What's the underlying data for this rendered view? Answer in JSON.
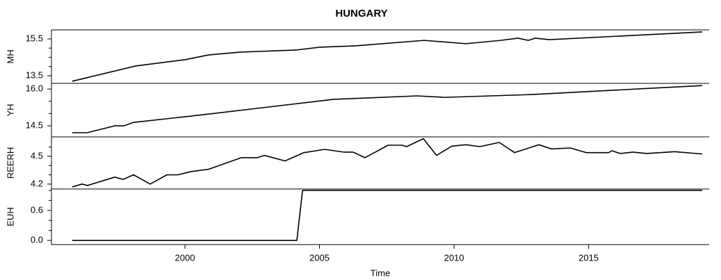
{
  "title": "HUNGARY",
  "chart_data": [
    {
      "type": "line",
      "ylabel": "MH",
      "color": "#000000",
      "xlim": [
        1995.04,
        2019.48
      ],
      "x": [
        1995.81,
        1998.17,
        2000,
        2000.88,
        2002.04,
        2004.16,
        2005.01,
        2006.3,
        2008.89,
        2010.44,
        2011.73,
        2012.38,
        2012.76,
        2013.02,
        2013.54,
        2019.22
      ],
      "values": [
        13.2,
        14.03,
        14.37,
        14.63,
        14.78,
        14.9,
        15.05,
        15.12,
        15.42,
        15.24,
        15.42,
        15.54,
        15.42,
        15.54,
        15.46,
        15.88
      ],
      "ylim": [
        13.085,
        15.99
      ],
      "yticks": [
        13.5,
        15.5
      ],
      "yminorticks": [
        14,
        14.5,
        15
      ]
    },
    {
      "type": "line",
      "ylabel": "YH",
      "color": "#000000",
      "xlim": [
        1995.04,
        2019.48
      ],
      "x": [
        1995.81,
        1996.36,
        1997.39,
        1997.73,
        1998.09,
        2000,
        2000.88,
        2005.53,
        2008.63,
        2009.66,
        2012.76,
        2019.22
      ],
      "values": [
        14.22,
        14.22,
        14.5,
        14.5,
        14.64,
        14.87,
        14.98,
        15.58,
        15.72,
        15.66,
        15.77,
        16.14
      ],
      "ylim": [
        14.05,
        16.23
      ],
      "yticks": [
        14.5,
        {
          "value": 16,
          "label": "16.0"
        }
      ],
      "yminorticks": [
        15,
        15.5
      ]
    },
    {
      "type": "line",
      "ylabel": "REERH",
      "color": "#000000",
      "xlim": [
        1995.04,
        2019.48
      ],
      "x": [
        1995.81,
        1996.18,
        1996.38,
        1997.39,
        1997.7,
        1998.09,
        1998.71,
        1999.33,
        1999.74,
        2000.23,
        2000.88,
        2002.09,
        2002.69,
        2002.95,
        2003.72,
        2004.42,
        2005.19,
        2005.92,
        2006.25,
        2006.69,
        2007.55,
        2008.06,
        2008.24,
        2008.86,
        2009.35,
        2009.92,
        2010.44,
        2010.96,
        2011.68,
        2012.25,
        2013.15,
        2013.62,
        2014.32,
        2014.91,
        2015.74,
        2015.87,
        2016.18,
        2016.64,
        2017.16,
        2018.19,
        2019.22
      ],
      "values": [
        4.17,
        4.2,
        4.185,
        4.275,
        4.25,
        4.3,
        4.2,
        4.3,
        4.3,
        4.335,
        4.36,
        4.485,
        4.485,
        4.51,
        4.45,
        4.54,
        4.575,
        4.545,
        4.545,
        4.485,
        4.62,
        4.62,
        4.605,
        4.69,
        4.51,
        4.61,
        4.625,
        4.605,
        4.65,
        4.54,
        4.625,
        4.58,
        4.59,
        4.54,
        4.54,
        4.56,
        4.53,
        4.545,
        4.53,
        4.55,
        4.525
      ],
      "ylim": [
        4.147,
        4.71
      ],
      "yticks": [
        4.2,
        4.5
      ],
      "yminorticks": [
        4.3,
        4.4,
        4.6
      ]
    },
    {
      "type": "line",
      "ylabel": "EUH",
      "color": "#000000",
      "xlim": [
        1995.04,
        2019.48
      ],
      "x": [
        1995.81,
        2004.16,
        2004.37,
        2019.22
      ],
      "values": [
        0,
        0,
        1,
        1
      ],
      "ylim": [
        -0.083,
        1.028
      ],
      "yticks": [
        {
          "value": 0,
          "label": "0.0"
        },
        0.6
      ],
      "yminorticks": [
        0.2,
        0.4,
        0.8,
        1
      ],
      "xlabel": "Time",
      "xticks": [
        2000,
        2005,
        2010,
        2015
      ]
    }
  ]
}
